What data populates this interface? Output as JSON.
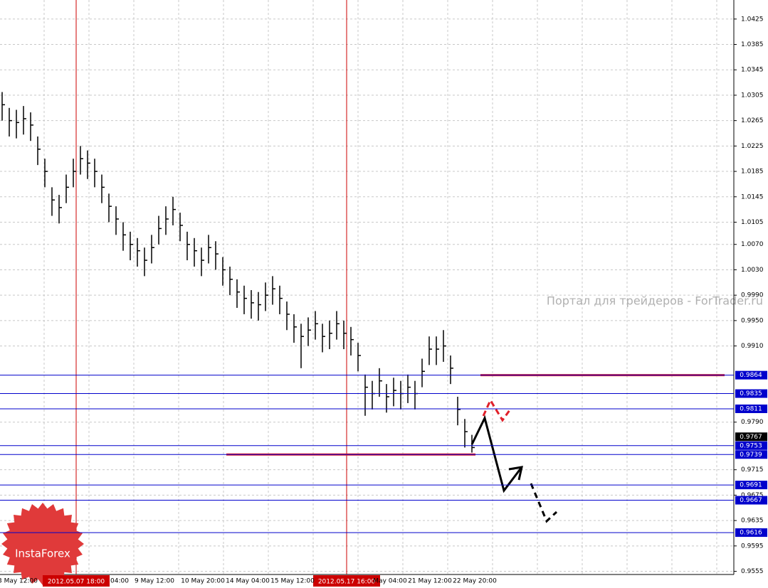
{
  "chart_data": {
    "type": "ohlc",
    "watermark": "Портал для трейдеров - ForTrader.ru",
    "logo": "InstaForex",
    "color": "#000000",
    "ylim": [
      0.955,
      1.0455
    ],
    "yticks": [
      1.0425,
      1.0385,
      1.0345,
      1.0305,
      1.0265,
      1.0225,
      1.0185,
      1.0145,
      1.0105,
      {
        "value": 1.007,
        "label": "1.0070"
      },
      {
        "value": 1.003,
        "label": "1.0030"
      },
      {
        "value": 0.999,
        "label": "0.9990"
      },
      {
        "value": 0.995,
        "label": "0.9950"
      },
      {
        "value": 0.991,
        "label": "0.9910"
      },
      {
        "value": 0.979,
        "label": "0.9790"
      },
      0.9715,
      0.9675,
      0.9635,
      0.9595,
      0.9555
    ],
    "grid": true,
    "x_labels": [
      "3 May 12:00",
      "04:00",
      "9 May 12:00",
      "10 May 20:00",
      "14 May 04:00",
      "15 May 12:00",
      "May 04:00",
      "21 May 12:00",
      "22 May 20:00"
    ],
    "markers": [
      "2012.05.07 18:00",
      "2012.05.17 16:00"
    ],
    "marker_color": "#cc0000",
    "levels": [
      0.9864,
      0.9835,
      0.9811,
      0.9753,
      0.9739,
      0.9691,
      0.9667,
      0.9616
    ],
    "level_color": "#0000cc",
    "current_price": 0.9767,
    "red_lines": [
      0.9864,
      0.9739
    ],
    "close": [
      1.029,
      1.0265,
      1.0262,
      1.0268,
      1.0258,
      1.022,
      1.0185,
      1.014,
      1.0128,
      1.016,
      1.0185,
      1.0205,
      1.0198,
      1.0185,
      1.016,
      1.013,
      1.011,
      1.0085,
      1.007,
      1.006,
      1.0045,
      1.0065,
      1.0095,
      1.011,
      1.0125,
      1.01,
      1.007,
      1.006,
      1.0045,
      1.0065,
      1.0055,
      1.003,
      1.0015,
      0.9995,
      0.9985,
      0.9978,
      0.9975,
      0.999,
      1.0,
      0.9985,
      0.996,
      0.994,
      0.9925,
      0.9935,
      0.9945,
      0.9925,
      0.993,
      0.9945,
      0.993,
      0.992,
      0.9895,
      0.9845,
      0.9835,
      0.9855,
      0.983,
      0.984,
      0.9835,
      0.9845,
      0.9835,
      0.987,
      0.9905,
      0.9905,
      0.991,
      0.9875,
      0.981,
      0.9775,
      0.975
    ],
    "high": [
      1.031,
      1.0285,
      1.0282,
      1.0288,
      1.0278,
      1.024,
      1.0205,
      1.016,
      1.0148,
      1.018,
      1.0205,
      1.0225,
      1.0218,
      1.0205,
      1.018,
      1.015,
      1.013,
      1.0105,
      1.009,
      1.008,
      1.0065,
      1.0085,
      1.0115,
      1.013,
      1.0145,
      1.012,
      1.009,
      1.008,
      1.0065,
      1.0085,
      1.0075,
      1.005,
      1.0035,
      1.0015,
      1.0005,
      0.9998,
      0.9995,
      1.001,
      1.002,
      1.0005,
      0.998,
      0.996,
      0.9945,
      0.9955,
      0.9965,
      0.9945,
      0.995,
      0.9965,
      0.995,
      0.994,
      0.9915,
      0.9865,
      0.9855,
      0.9875,
      0.985,
      0.986,
      0.9855,
      0.9865,
      0.9855,
      0.989,
      0.9925,
      0.9925,
      0.9935,
      0.9895,
      0.983,
      0.9795,
      0.977
    ],
    "low": [
      1.0265,
      1.024,
      1.0237,
      1.0243,
      1.0233,
      1.0195,
      1.016,
      1.0115,
      1.0103,
      1.0135,
      1.016,
      1.018,
      1.0173,
      1.016,
      1.0135,
      1.0105,
      1.0085,
      1.006,
      1.0045,
      1.0035,
      1.002,
      1.004,
      1.007,
      1.0085,
      1.01,
      1.0075,
      1.0045,
      1.0035,
      1.002,
      1.004,
      1.003,
      1.0005,
      0.999,
      0.997,
      0.996,
      0.9953,
      0.995,
      0.9965,
      0.9975,
      0.996,
      0.9935,
      0.9915,
      0.9875,
      0.991,
      0.992,
      0.99,
      0.9905,
      0.992,
      0.9905,
      0.9895,
      0.987,
      0.98,
      0.981,
      0.983,
      0.9805,
      0.9815,
      0.981,
      0.982,
      0.981,
      0.9845,
      0.988,
      0.988,
      0.9885,
      0.985,
      0.9785,
      0.975,
      0.9742
    ]
  }
}
